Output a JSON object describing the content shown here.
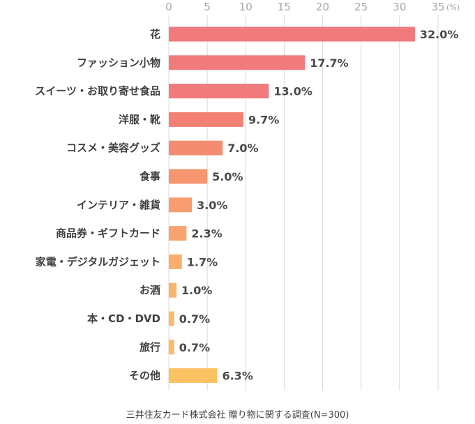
{
  "chart_data": {
    "type": "bar",
    "orientation": "horizontal",
    "categories": [
      "花",
      "ファッション小物",
      "スイーツ・お取り寄せ食品",
      "洋服・靴",
      "コスメ・美容グッズ",
      "食事",
      "インテリア・雑貨",
      "商品券・ギフトカード",
      "家電・デジタルガジェット",
      "お酒",
      "本・CD・DVD",
      "旅行",
      "その他"
    ],
    "values": [
      32.0,
      17.7,
      13.0,
      9.7,
      7.0,
      5.0,
      3.0,
      2.3,
      1.7,
      1.0,
      0.7,
      0.7,
      6.3
    ],
    "value_labels": [
      "32.0%",
      "17.7%",
      "13.0%",
      "9.7%",
      "7.0%",
      "5.0%",
      "3.0%",
      "2.3%",
      "1.7%",
      "1.0%",
      "0.7%",
      "0.7%",
      "6.3%"
    ],
    "bar_colors": [
      "#f07a7c",
      "#f07a7c",
      "#f07a7c",
      "#f28173",
      "#f38c70",
      "#f5966e",
      "#f79d6f",
      "#f9a46e",
      "#faad6d",
      "#fab46c",
      "#fbb96b",
      "#fbb96b",
      "#fbc163"
    ],
    "x_ticks": [
      "0",
      "5",
      "10",
      "15",
      "20",
      "25",
      "30",
      "35"
    ],
    "x_unit": "(%)",
    "xlim": [
      0,
      35
    ],
    "grid": true,
    "source": "三井住友カード株式会社 贈り物に関する調査(N=300)"
  }
}
